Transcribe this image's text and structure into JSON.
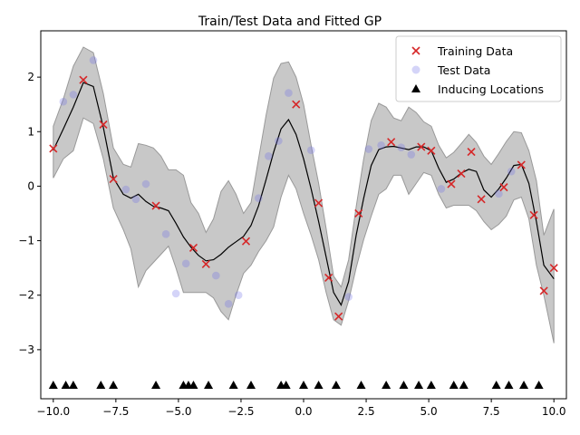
{
  "chart_data": {
    "type": "scatter",
    "title": "Train/Test Data and Fitted GP",
    "xlabel": "",
    "ylabel": "",
    "xlim": [
      -10.5,
      10.5
    ],
    "ylim": [
      -3.9,
      2.85
    ],
    "x_ticks": [
      -10.0,
      -7.5,
      -5.0,
      -2.5,
      0.0,
      2.5,
      5.0,
      7.5,
      10.0
    ],
    "x_tick_labels": [
      "−10.0",
      "−7.5",
      "−5.0",
      "−2.5",
      "0.0",
      "2.5",
      "5.0",
      "7.5",
      "10.0"
    ],
    "y_ticks": [
      -3,
      -2,
      -1,
      0,
      1,
      2
    ],
    "y_tick_labels": [
      "−3",
      "−2",
      "−1",
      "0",
      "1",
      "2"
    ],
    "grid": false,
    "legend_position": "top-right",
    "colors": {
      "training": "#d62728",
      "test": "#6f6fe8",
      "inducing": "#000000",
      "mean": "#000000",
      "band": "#999999"
    },
    "series": [
      {
        "name": "Training Data",
        "marker": "x",
        "points": [
          [
            -10.0,
            0.69
          ],
          [
            -8.8,
            1.95
          ],
          [
            -8.0,
            1.13
          ],
          [
            -7.6,
            0.13
          ],
          [
            -5.9,
            -0.36
          ],
          [
            -4.4,
            -1.13
          ],
          [
            -3.9,
            -1.43
          ],
          [
            -2.3,
            -1.01
          ],
          [
            -0.3,
            1.5
          ],
          [
            0.6,
            -0.31
          ],
          [
            1.0,
            -1.68
          ],
          [
            1.4,
            -2.39
          ],
          [
            2.2,
            -0.5
          ],
          [
            3.5,
            0.81
          ],
          [
            4.7,
            0.72
          ],
          [
            5.1,
            0.65
          ],
          [
            5.9,
            0.04
          ],
          [
            6.3,
            0.23
          ],
          [
            6.7,
            0.63
          ],
          [
            7.1,
            -0.24
          ],
          [
            8.0,
            -0.02
          ],
          [
            8.7,
            0.39
          ],
          [
            9.2,
            -0.53
          ],
          [
            9.6,
            -1.92
          ],
          [
            10.0,
            -1.5
          ]
        ]
      },
      {
        "name": "Test Data",
        "marker": "circle",
        "points": [
          [
            -9.6,
            1.55
          ],
          [
            -9.2,
            1.68
          ],
          [
            -8.4,
            2.31
          ],
          [
            -7.1,
            -0.06
          ],
          [
            -6.7,
            -0.24
          ],
          [
            -6.3,
            0.04
          ],
          [
            -5.5,
            -0.88
          ],
          [
            -5.1,
            -1.97
          ],
          [
            -4.7,
            -1.42
          ],
          [
            -3.5,
            -1.64
          ],
          [
            -3.0,
            -2.16
          ],
          [
            -2.6,
            -2.0
          ],
          [
            -1.8,
            -0.22
          ],
          [
            -1.4,
            0.55
          ],
          [
            -1.0,
            0.83
          ],
          [
            -0.6,
            1.71
          ],
          [
            0.3,
            0.66
          ],
          [
            1.8,
            -2.03
          ],
          [
            2.6,
            0.68
          ],
          [
            3.1,
            0.75
          ],
          [
            3.9,
            0.71
          ],
          [
            4.3,
            0.58
          ],
          [
            5.5,
            -0.05
          ],
          [
            7.8,
            -0.14
          ],
          [
            8.3,
            0.27
          ]
        ]
      },
      {
        "name": "Inducing Locations",
        "marker": "triangle",
        "points": [
          [
            -10.0,
            -3.65
          ],
          [
            -9.5,
            -3.65
          ],
          [
            -9.2,
            -3.65
          ],
          [
            -8.1,
            -3.65
          ],
          [
            -7.6,
            -3.65
          ],
          [
            -5.9,
            -3.65
          ],
          [
            -4.8,
            -3.65
          ],
          [
            -4.6,
            -3.65
          ],
          [
            -4.4,
            -3.65
          ],
          [
            -3.8,
            -3.65
          ],
          [
            -2.8,
            -3.65
          ],
          [
            -2.1,
            -3.65
          ],
          [
            -0.9,
            -3.65
          ],
          [
            -0.7,
            -3.65
          ],
          [
            0.0,
            -3.65
          ],
          [
            0.6,
            -3.65
          ],
          [
            1.3,
            -3.65
          ],
          [
            2.3,
            -3.65
          ],
          [
            3.3,
            -3.65
          ],
          [
            4.0,
            -3.65
          ],
          [
            4.6,
            -3.65
          ],
          [
            5.1,
            -3.65
          ],
          [
            6.0,
            -3.65
          ],
          [
            6.4,
            -3.65
          ],
          [
            7.7,
            -3.65
          ],
          [
            8.2,
            -3.65
          ],
          [
            8.8,
            -3.65
          ],
          [
            9.4,
            -3.65
          ]
        ]
      }
    ],
    "gp_fit": {
      "x": [
        -10.0,
        -9.6,
        -9.2,
        -8.8,
        -8.4,
        -8.0,
        -7.6,
        -7.2,
        -6.9,
        -6.6,
        -6.3,
        -6.0,
        -5.7,
        -5.4,
        -5.1,
        -4.8,
        -4.5,
        -4.2,
        -3.9,
        -3.6,
        -3.3,
        -3.0,
        -2.7,
        -2.4,
        -2.1,
        -1.8,
        -1.5,
        -1.2,
        -0.9,
        -0.6,
        -0.3,
        0.0,
        0.3,
        0.6,
        0.9,
        1.2,
        1.5,
        1.8,
        2.1,
        2.4,
        2.7,
        3.0,
        3.3,
        3.6,
        3.9,
        4.2,
        4.5,
        4.8,
        5.1,
        5.4,
        5.7,
        6.0,
        6.3,
        6.6,
        6.9,
        7.2,
        7.5,
        7.8,
        8.1,
        8.4,
        8.7,
        9.0,
        9.3,
        9.6,
        10.0
      ],
      "mean": [
        0.66,
        1.05,
        1.45,
        1.9,
        1.83,
        1.08,
        0.15,
        -0.15,
        -0.22,
        -0.15,
        -0.28,
        -0.37,
        -0.4,
        -0.45,
        -0.68,
        -0.93,
        -1.12,
        -1.27,
        -1.37,
        -1.35,
        -1.25,
        -1.12,
        -1.02,
        -0.92,
        -0.72,
        -0.36,
        0.12,
        0.62,
        1.05,
        1.22,
        0.95,
        0.5,
        -0.05,
        -0.65,
        -1.3,
        -1.95,
        -2.18,
        -1.75,
        -0.9,
        -0.22,
        0.38,
        0.67,
        0.72,
        0.73,
        0.7,
        0.67,
        0.72,
        0.72,
        0.65,
        0.33,
        0.07,
        0.13,
        0.24,
        0.31,
        0.27,
        -0.07,
        -0.2,
        -0.05,
        0.15,
        0.38,
        0.4,
        0.05,
        -0.65,
        -1.45,
        -1.7
      ],
      "upper": [
        1.1,
        1.6,
        2.2,
        2.55,
        2.45,
        1.7,
        0.7,
        0.4,
        0.35,
        0.78,
        0.75,
        0.7,
        0.55,
        0.3,
        0.3,
        0.2,
        -0.3,
        -0.5,
        -0.85,
        -0.6,
        -0.1,
        0.1,
        -0.15,
        -0.5,
        -0.3,
        0.5,
        1.3,
        1.98,
        2.25,
        2.28,
        2.0,
        1.5,
        0.75,
        0.05,
        -0.78,
        -1.65,
        -1.85,
        -1.35,
        -0.38,
        0.5,
        1.2,
        1.52,
        1.45,
        1.25,
        1.2,
        1.45,
        1.35,
        1.18,
        1.1,
        0.75,
        0.52,
        0.62,
        0.78,
        0.95,
        0.8,
        0.55,
        0.4,
        0.6,
        0.82,
        1.0,
        0.98,
        0.65,
        0.1,
        -0.9,
        -0.42
      ],
      "lower": [
        0.15,
        0.5,
        0.65,
        1.25,
        1.15,
        0.5,
        -0.4,
        -0.8,
        -1.15,
        -1.85,
        -1.55,
        -1.4,
        -1.25,
        -1.1,
        -1.5,
        -1.95,
        -1.95,
        -1.95,
        -1.95,
        -2.05,
        -2.3,
        -2.45,
        -2.0,
        -1.6,
        -1.45,
        -1.2,
        -1.0,
        -0.75,
        -0.2,
        0.2,
        -0.05,
        -0.5,
        -0.9,
        -1.35,
        -1.95,
        -2.45,
        -2.55,
        -2.1,
        -1.5,
        -0.98,
        -0.55,
        -0.15,
        -0.05,
        0.2,
        0.2,
        -0.15,
        0.05,
        0.25,
        0.2,
        -0.15,
        -0.4,
        -0.35,
        -0.35,
        -0.35,
        -0.45,
        -0.65,
        -0.8,
        -0.7,
        -0.55,
        -0.25,
        -0.2,
        -0.6,
        -1.45,
        -2.0,
        -2.88
      ]
    }
  }
}
